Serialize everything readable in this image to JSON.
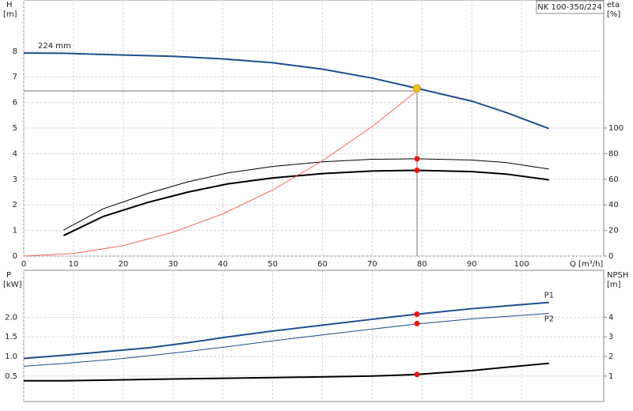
{
  "chart_data": [
    {
      "type": "line",
      "label_box": "NK 100-350/224",
      "y_label": "H",
      "y_unit": "[m]",
      "y2_label": "eta",
      "y2_unit": "[%]",
      "x_label": "Q [m³/h]",
      "xlim": [
        0,
        116.5
      ],
      "xticks": [
        0,
        10,
        20,
        30,
        40,
        50,
        60,
        70,
        80,
        90,
        100
      ],
      "ylim": [
        0,
        10
      ],
      "yticks": [
        0,
        1,
        2,
        3,
        4,
        5,
        6,
        7,
        8
      ],
      "y2lim": [
        0,
        200
      ],
      "y2ticks": [
        0,
        20,
        40,
        60,
        80,
        100
      ],
      "grid": true,
      "series_label": "start",
      "series": [
        {
          "name": "224 mm",
          "color": "#1f4e8c",
          "width": 2,
          "x": [
            0,
            8,
            20,
            30,
            40,
            50,
            60,
            70,
            79,
            90,
            97,
            105.5
          ],
          "values": [
            7.93,
            7.92,
            7.85,
            7.8,
            7.7,
            7.55,
            7.3,
            6.95,
            6.55,
            6.05,
            5.6,
            4.98
          ]
        },
        {
          "color": "#000000",
          "width": 1,
          "axis": "y2",
          "x": [
            8,
            16,
            25,
            33,
            41,
            50,
            60,
            70,
            79,
            90,
            97,
            105.5
          ],
          "values": [
            20.3,
            37,
            49,
            58,
            65,
            70,
            73.6,
            75.6,
            76,
            75,
            73,
            68
          ]
        },
        {
          "color": "#000000",
          "width": 2,
          "axis": "y2",
          "x": [
            8,
            16,
            25,
            33,
            41,
            50,
            60,
            70,
            79,
            90,
            97,
            105.5
          ],
          "values": [
            16,
            31,
            42,
            50,
            56.4,
            61,
            64.4,
            66.4,
            67,
            66,
            64,
            59.6
          ]
        },
        {
          "color": "#ff3b30",
          "width": 0.8,
          "x": [
            0,
            10,
            20,
            30,
            40,
            50,
            60,
            70,
            79
          ],
          "values": [
            0,
            0.1,
            0.41,
            0.93,
            1.65,
            2.58,
            3.72,
            5.06,
            6.45
          ]
        }
      ],
      "duty_point": {
        "x": 79,
        "y": 6.45
      },
      "points": [
        {
          "x": 79,
          "y": 6.55,
          "color": "#f5c518"
        },
        {
          "x": 79,
          "y": 76,
          "axis": "y2",
          "color": "#ee1111"
        },
        {
          "x": 79,
          "y": 67,
          "axis": "y2",
          "color": "#ee1111"
        }
      ]
    },
    {
      "type": "line",
      "y_label": "P",
      "y_unit": "[kW]",
      "y2_label": "NPSH",
      "y2_unit": "[m]",
      "xlim": [
        0,
        116.5
      ],
      "ylim": [
        -0.15,
        3.2
      ],
      "yticks": [
        0.5,
        {
          "value": 1,
          "label": "1.0"
        },
        1.5,
        {
          "value": 2,
          "label": "2.0"
        }
      ],
      "y2lim": [
        -0.3,
        6.4
      ],
      "y2ticks": [
        1,
        2,
        3,
        4
      ],
      "grid": true,
      "series_label": "end",
      "series": [
        {
          "name": "P1",
          "color": "#1f4e8c",
          "width": 2,
          "x": [
            0,
            8,
            25,
            33,
            41,
            50,
            60,
            70,
            79,
            90,
            105.5
          ],
          "values": [
            0.95,
            1.03,
            1.22,
            1.35,
            1.5,
            1.65,
            1.8,
            1.95,
            2.08,
            2.22,
            2.38
          ]
        },
        {
          "name": "P2",
          "color": "#1f4e8c",
          "width": 1,
          "x": [
            0,
            8,
            20,
            33,
            41,
            50,
            60,
            70,
            79,
            90,
            105.5
          ],
          "values": [
            0.75,
            0.82,
            0.95,
            1.13,
            1.25,
            1.4,
            1.55,
            1.7,
            1.83,
            1.96,
            2.1
          ]
        },
        {
          "color": "#000000",
          "width": 2,
          "axis": "y2",
          "x": [
            0,
            8,
            30,
            50,
            70,
            79,
            90,
            97,
            105.5
          ],
          "values": [
            0.76,
            0.76,
            0.85,
            0.92,
            1.0,
            1.08,
            1.28,
            1.45,
            1.65
          ]
        }
      ],
      "points": [
        {
          "x": 79,
          "y": 2.08,
          "color": "#ee1111"
        },
        {
          "x": 79,
          "y": 1.84,
          "color": "#ee1111"
        },
        {
          "x": 79,
          "y": 1.08,
          "axis": "y2",
          "color": "#ee1111"
        }
      ]
    }
  ]
}
